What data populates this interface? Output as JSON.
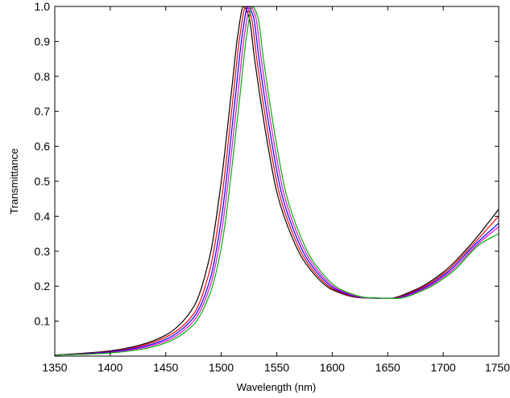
{
  "chart_data": {
    "type": "line",
    "xlabel": "Wavelength (nm)",
    "ylabel": "Transmittance",
    "xlim": [
      1350,
      1750
    ],
    "ylim": [
      0,
      1.0
    ],
    "grid": false,
    "x_ticks": [
      1350,
      1400,
      1450,
      1500,
      1550,
      1600,
      1650,
      1700,
      1750
    ],
    "y_ticks": [
      0.1,
      0.2,
      0.3,
      0.4,
      0.5,
      0.6,
      0.7,
      0.8,
      0.9,
      1.0
    ],
    "x_tick_labels": [
      "1350",
      "1400",
      "1450",
      "1500",
      "1550",
      "1600",
      "1650",
      "1700",
      "1750"
    ],
    "y_tick_labels": [
      "0.1",
      "0.2",
      "0.3",
      "0.4",
      "0.5",
      "0.6",
      "0.7",
      "0.8",
      "0.9",
      "1.0"
    ],
    "series": [
      {
        "color": "#000000",
        "x": [
          1350,
          1375,
          1400,
          1425,
          1450,
          1475,
          1490,
          1500,
          1510,
          1515,
          1520,
          1525,
          1530,
          1540,
          1550,
          1560,
          1575,
          1600,
          1625,
          1650,
          1675,
          1700,
          1725,
          1750
        ],
        "y": [
          0.003,
          0.008,
          0.015,
          0.03,
          0.06,
          0.14,
          0.29,
          0.5,
          0.78,
          0.92,
          1.0,
          0.97,
          0.85,
          0.64,
          0.47,
          0.37,
          0.27,
          0.19,
          0.167,
          0.165,
          0.19,
          0.24,
          0.32,
          0.42
        ]
      },
      {
        "color": "#ff0000",
        "x": [
          1350,
          1375,
          1400,
          1425,
          1450,
          1475,
          1490,
          1500,
          1510,
          1517,
          1522,
          1527,
          1532,
          1542,
          1552,
          1562,
          1577,
          1602,
          1627,
          1652,
          1677,
          1702,
          1727,
          1750
        ],
        "y": [
          0.003,
          0.007,
          0.013,
          0.027,
          0.054,
          0.12,
          0.25,
          0.44,
          0.72,
          0.92,
          1.0,
          0.97,
          0.85,
          0.64,
          0.47,
          0.37,
          0.27,
          0.19,
          0.167,
          0.165,
          0.19,
          0.24,
          0.32,
          0.4
        ]
      },
      {
        "color": "#0000ff",
        "x": [
          1350,
          1375,
          1400,
          1425,
          1450,
          1475,
          1490,
          1500,
          1512,
          1519,
          1524,
          1529,
          1534,
          1544,
          1554,
          1564,
          1579,
          1604,
          1629,
          1654,
          1679,
          1704,
          1729,
          1750
        ],
        "y": [
          0.003,
          0.006,
          0.012,
          0.024,
          0.048,
          0.11,
          0.22,
          0.39,
          0.72,
          0.92,
          1.0,
          0.97,
          0.85,
          0.64,
          0.47,
          0.37,
          0.27,
          0.19,
          0.167,
          0.165,
          0.19,
          0.24,
          0.32,
          0.38
        ]
      },
      {
        "color": "#ff00ff",
        "x": [
          1350,
          1375,
          1400,
          1425,
          1450,
          1475,
          1490,
          1500,
          1514,
          1521,
          1526,
          1531,
          1536,
          1546,
          1556,
          1566,
          1581,
          1606,
          1631,
          1656,
          1681,
          1706,
          1731,
          1750
        ],
        "y": [
          0.003,
          0.005,
          0.01,
          0.021,
          0.043,
          0.1,
          0.2,
          0.35,
          0.72,
          0.92,
          1.0,
          0.97,
          0.85,
          0.64,
          0.47,
          0.37,
          0.27,
          0.19,
          0.167,
          0.165,
          0.19,
          0.24,
          0.32,
          0.37
        ]
      },
      {
        "color": "#00b000",
        "x": [
          1350,
          1375,
          1400,
          1425,
          1450,
          1475,
          1490,
          1500,
          1516,
          1523,
          1528,
          1533,
          1538,
          1548,
          1558,
          1568,
          1583,
          1608,
          1633,
          1658,
          1683,
          1708,
          1733,
          1750
        ],
        "y": [
          0.003,
          0.005,
          0.009,
          0.018,
          0.038,
          0.09,
          0.18,
          0.31,
          0.72,
          0.92,
          1.0,
          0.97,
          0.85,
          0.64,
          0.47,
          0.37,
          0.27,
          0.19,
          0.167,
          0.165,
          0.19,
          0.24,
          0.32,
          0.35
        ]
      }
    ]
  }
}
